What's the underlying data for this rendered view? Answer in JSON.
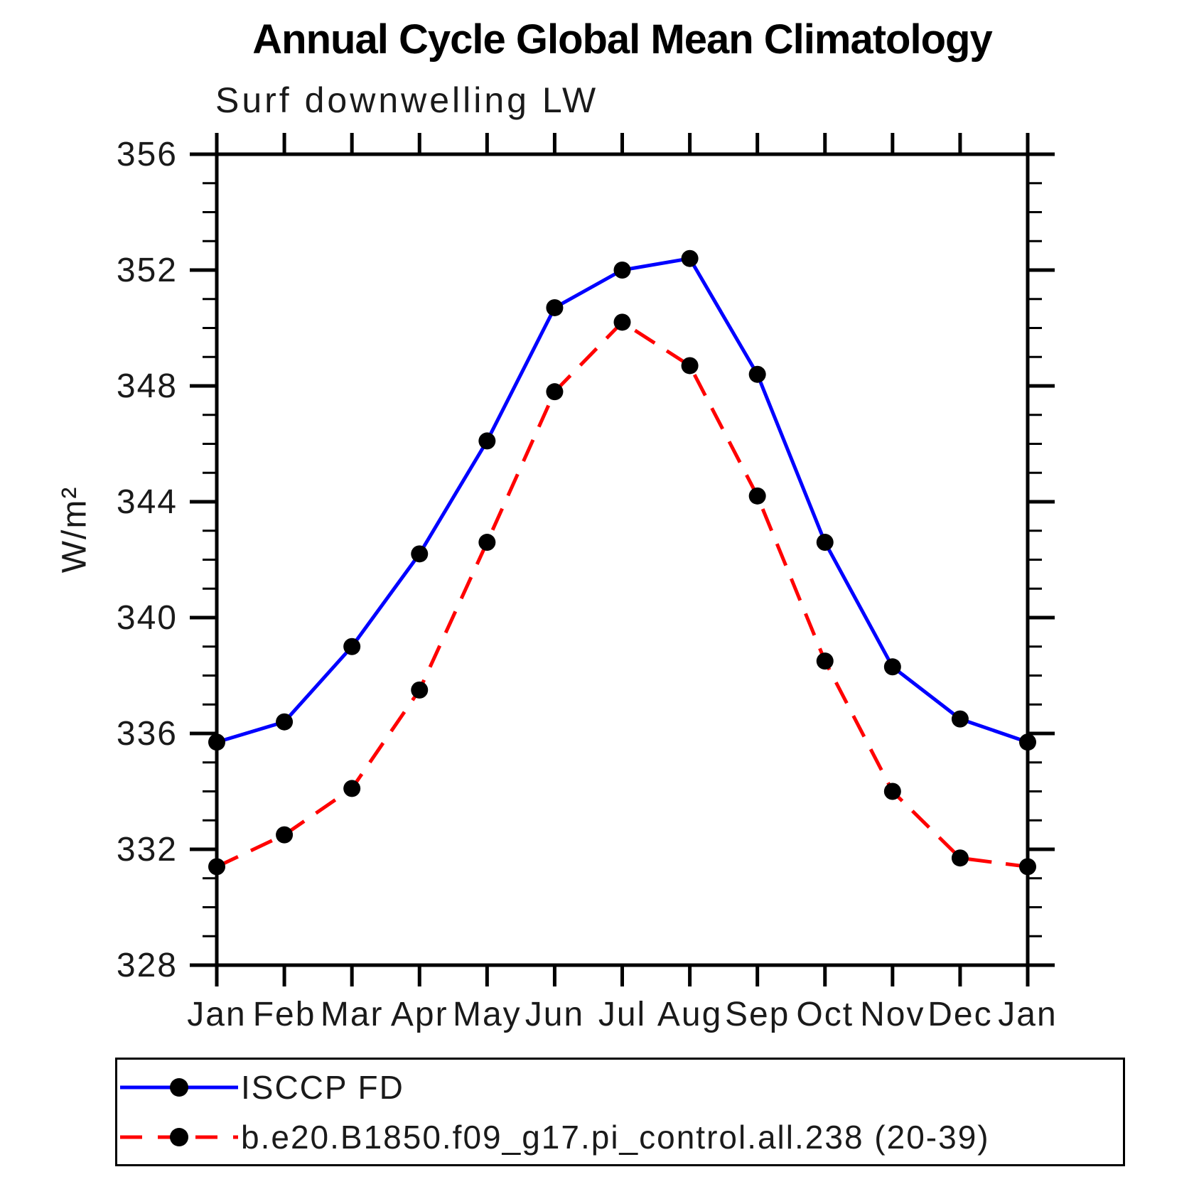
{
  "chart_data": {
    "type": "line",
    "title": "Annual Cycle Global Mean Climatology",
    "subtitle": "Surf downwelling LW",
    "ylabel": "W/m²",
    "xlabel": "",
    "categories": [
      "Jan",
      "Feb",
      "Mar",
      "Apr",
      "May",
      "Jun",
      "Jul",
      "Aug",
      "Sep",
      "Oct",
      "Nov",
      "Dec",
      "Jan"
    ],
    "ylim": [
      328,
      356
    ],
    "y_major_step": 4,
    "y_minor_step": 1,
    "grid": false,
    "legend_position": "bottom-left",
    "axis_color": "#000000",
    "marker_color": "#000000",
    "series": [
      {
        "name": "ISCCP FD",
        "color": "#0000ff",
        "style": "solid",
        "marker": "circle",
        "values": [
          335.7,
          336.4,
          339.0,
          342.2,
          346.1,
          350.7,
          352.0,
          352.4,
          348.4,
          342.6,
          338.3,
          336.5,
          335.7
        ]
      },
      {
        "name": "b.e20.B1850.f09_g17.pi_control.all.238 (20-39)",
        "color": "#ff0000",
        "style": "dashed",
        "marker": "circle",
        "values": [
          331.4,
          332.5,
          334.1,
          337.5,
          342.6,
          347.8,
          350.2,
          348.7,
          344.2,
          338.5,
          334.0,
          331.7,
          331.4
        ]
      }
    ]
  }
}
